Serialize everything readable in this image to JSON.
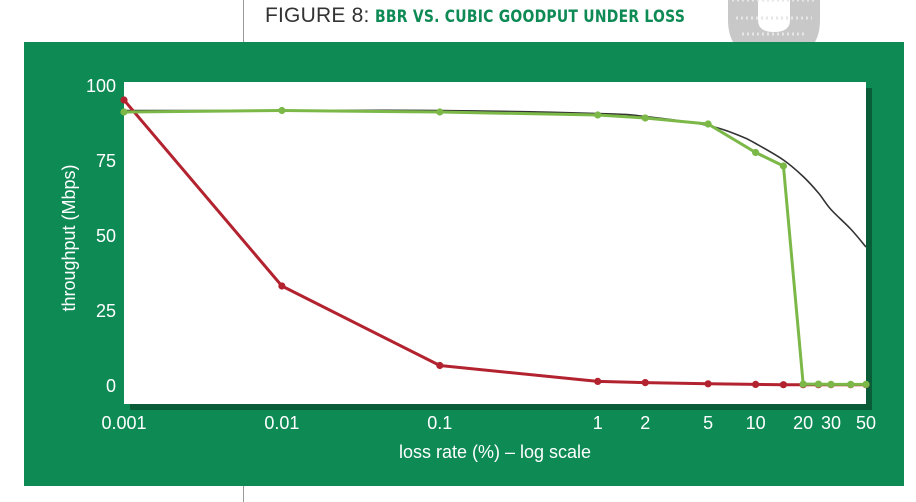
{
  "figure": {
    "label": "FIGURE 8:",
    "name": "BBR VS. CUBIC GOODPUT UNDER LOSS"
  },
  "colors": {
    "panel": "#0e8a55",
    "bbr": "#7bb848",
    "cubic": "#b3222f",
    "theory": "#333333"
  },
  "chart_data": {
    "type": "line",
    "xlabel": "loss rate (%) – log scale",
    "ylabel": "throughput (Mbps)",
    "xscale": "log",
    "xlim": [
      0.001,
      50
    ],
    "ylim": [
      0,
      100
    ],
    "xticks": [
      0.001,
      0.01,
      0.1,
      1,
      2,
      5,
      10,
      20,
      30,
      50
    ],
    "xtick_labels": [
      "0.001",
      "0.01",
      "0.1",
      "1",
      "2",
      "5",
      "10",
      "20",
      "30",
      "50"
    ],
    "yticks": [
      0,
      25,
      50,
      75,
      100
    ],
    "ytick_labels": [
      "0",
      "25",
      "50",
      "75",
      "100"
    ],
    "grid": false,
    "series": [
      {
        "key": "bbr",
        "style": "line-markers",
        "x": [
          0.001,
          0.01,
          0.1,
          1,
          2,
          5,
          10,
          15,
          20,
          25,
          30,
          40,
          50
        ],
        "y": [
          91,
          91.5,
          91,
          90,
          89,
          87,
          77.5,
          73,
          0.3,
          0.3,
          0.2,
          0.2,
          0.2
        ]
      },
      {
        "key": "cubic",
        "style": "line-markers",
        "x": [
          0.001,
          0.01,
          0.1,
          1,
          2,
          5,
          10,
          15,
          20,
          25,
          30,
          40,
          50
        ],
        "y": [
          95,
          33,
          6.5,
          1.2,
          0.8,
          0.4,
          0.2,
          0.1,
          0.1,
          0.1,
          0.1,
          0.1,
          0.1
        ]
      },
      {
        "key": "theory",
        "style": "smooth-line",
        "x": [
          0.001,
          0.01,
          0.1,
          1,
          2,
          5,
          8,
          10,
          15,
          20,
          25,
          30,
          40,
          50
        ],
        "y": [
          91.5,
          91.5,
          91.5,
          90.5,
          89.5,
          86.5,
          83,
          80.5,
          75,
          69.5,
          64,
          58.5,
          52,
          46
        ]
      }
    ]
  }
}
